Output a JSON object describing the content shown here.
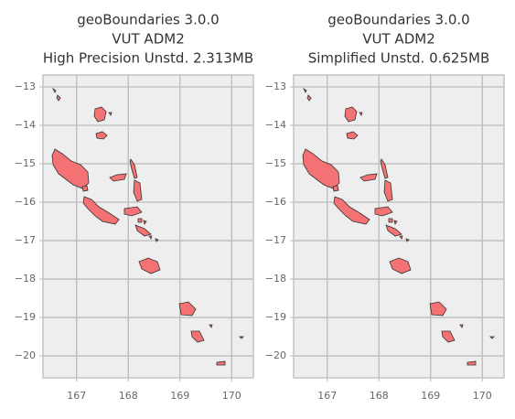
{
  "chart_data": [
    {
      "type": "map",
      "title": [
        "geoBoundaries 3.0.0",
        "VUT ADM2",
        "High Precision Unstd. 2.313MB"
      ],
      "xlim": [
        166.35,
        170.42
      ],
      "ylim": [
        -20.57,
        -12.69
      ],
      "xticks": [
        167,
        168,
        169,
        170
      ],
      "yticks": [
        {
          "value": -13,
          "label": "−13"
        },
        {
          "value": -14,
          "label": "−14"
        },
        {
          "value": -15,
          "label": "−15"
        },
        {
          "value": -16,
          "label": "−16"
        },
        {
          "value": -17,
          "label": "−17"
        },
        {
          "value": -18,
          "label": "−18"
        },
        {
          "value": -19,
          "label": "−19"
        },
        {
          "value": -20,
          "label": "−20"
        }
      ],
      "grid": true,
      "color": "#f47174"
    },
    {
      "type": "map",
      "title": [
        "geoBoundaries 3.0.0",
        "VUT ADM2",
        "Simplified Unstd. 0.625MB"
      ],
      "xlim": [
        166.35,
        170.42
      ],
      "ylim": [
        -20.57,
        -12.69
      ],
      "xticks": [
        167,
        168,
        169,
        170
      ],
      "yticks": [
        {
          "value": -13,
          "label": "−13"
        },
        {
          "value": -14,
          "label": "−14"
        },
        {
          "value": -15,
          "label": "−15"
        },
        {
          "value": -16,
          "label": "−16"
        },
        {
          "value": -17,
          "label": "−17"
        },
        {
          "value": -18,
          "label": "−18"
        },
        {
          "value": -19,
          "label": "−19"
        },
        {
          "value": -20,
          "label": "−20"
        }
      ],
      "grid": true,
      "color": "#f47174"
    }
  ]
}
